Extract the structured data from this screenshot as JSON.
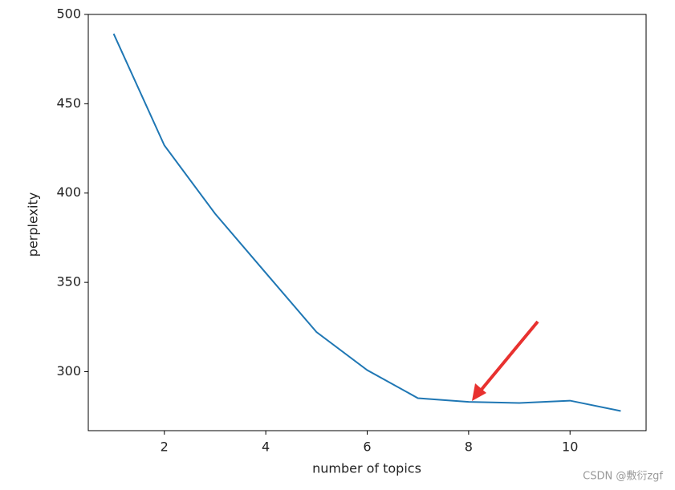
{
  "chart_data": {
    "type": "line",
    "x_label": "number of topics",
    "y_label": "perplexity",
    "x": [
      1,
      2,
      3,
      4,
      5,
      6,
      7,
      8,
      9,
      10,
      11
    ],
    "series": [
      {
        "color": "#1f77b4",
        "values": [
          489.2,
          426.7,
          388.5,
          355.3,
          322.2,
          300.9,
          285.2,
          283.1,
          282.5,
          283.8,
          278.0
        ]
      }
    ],
    "xlim": [
      0.5,
      11.5
    ],
    "xticks": [
      2,
      4,
      6,
      8,
      10
    ],
    "ylim": [
      267,
      500
    ],
    "yticks": [
      300,
      350,
      400,
      450,
      500
    ],
    "grid": false
  },
  "watermark": "CSDN @敷衍zgf"
}
